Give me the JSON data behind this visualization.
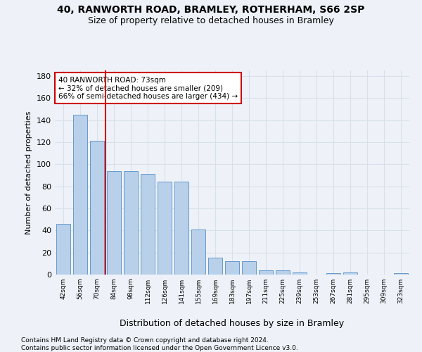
{
  "title1": "40, RANWORTH ROAD, BRAMLEY, ROTHERHAM, S66 2SP",
  "title2": "Size of property relative to detached houses in Bramley",
  "xlabel": "Distribution of detached houses by size in Bramley",
  "ylabel": "Number of detached properties",
  "categories": [
    "42sqm",
    "56sqm",
    "70sqm",
    "84sqm",
    "98sqm",
    "112sqm",
    "126sqm",
    "141sqm",
    "155sqm",
    "169sqm",
    "183sqm",
    "197sqm",
    "211sqm",
    "225sqm",
    "239sqm",
    "253sqm",
    "267sqm",
    "281sqm",
    "295sqm",
    "309sqm",
    "323sqm"
  ],
  "values": [
    46,
    145,
    121,
    94,
    94,
    91,
    84,
    84,
    41,
    15,
    12,
    12,
    4,
    4,
    2,
    0,
    1,
    2,
    0,
    0,
    1
  ],
  "bar_color": "#b8d0ea",
  "bar_edge_color": "#6699cc",
  "vline_x": 2.5,
  "vline_color": "#cc0000",
  "annotation_text": "40 RANWORTH ROAD: 73sqm\n← 32% of detached houses are smaller (209)\n66% of semi-detached houses are larger (434) →",
  "annotation_box_color": "#ffffff",
  "annotation_box_edge": "#cc0000",
  "ylim": [
    0,
    185
  ],
  "yticks": [
    0,
    20,
    40,
    60,
    80,
    100,
    120,
    140,
    160,
    180
  ],
  "footer1": "Contains HM Land Registry data © Crown copyright and database right 2024.",
  "footer2": "Contains public sector information licensed under the Open Government Licence v3.0.",
  "bg_color": "#eef2f8",
  "grid_color": "#d8e0ec"
}
